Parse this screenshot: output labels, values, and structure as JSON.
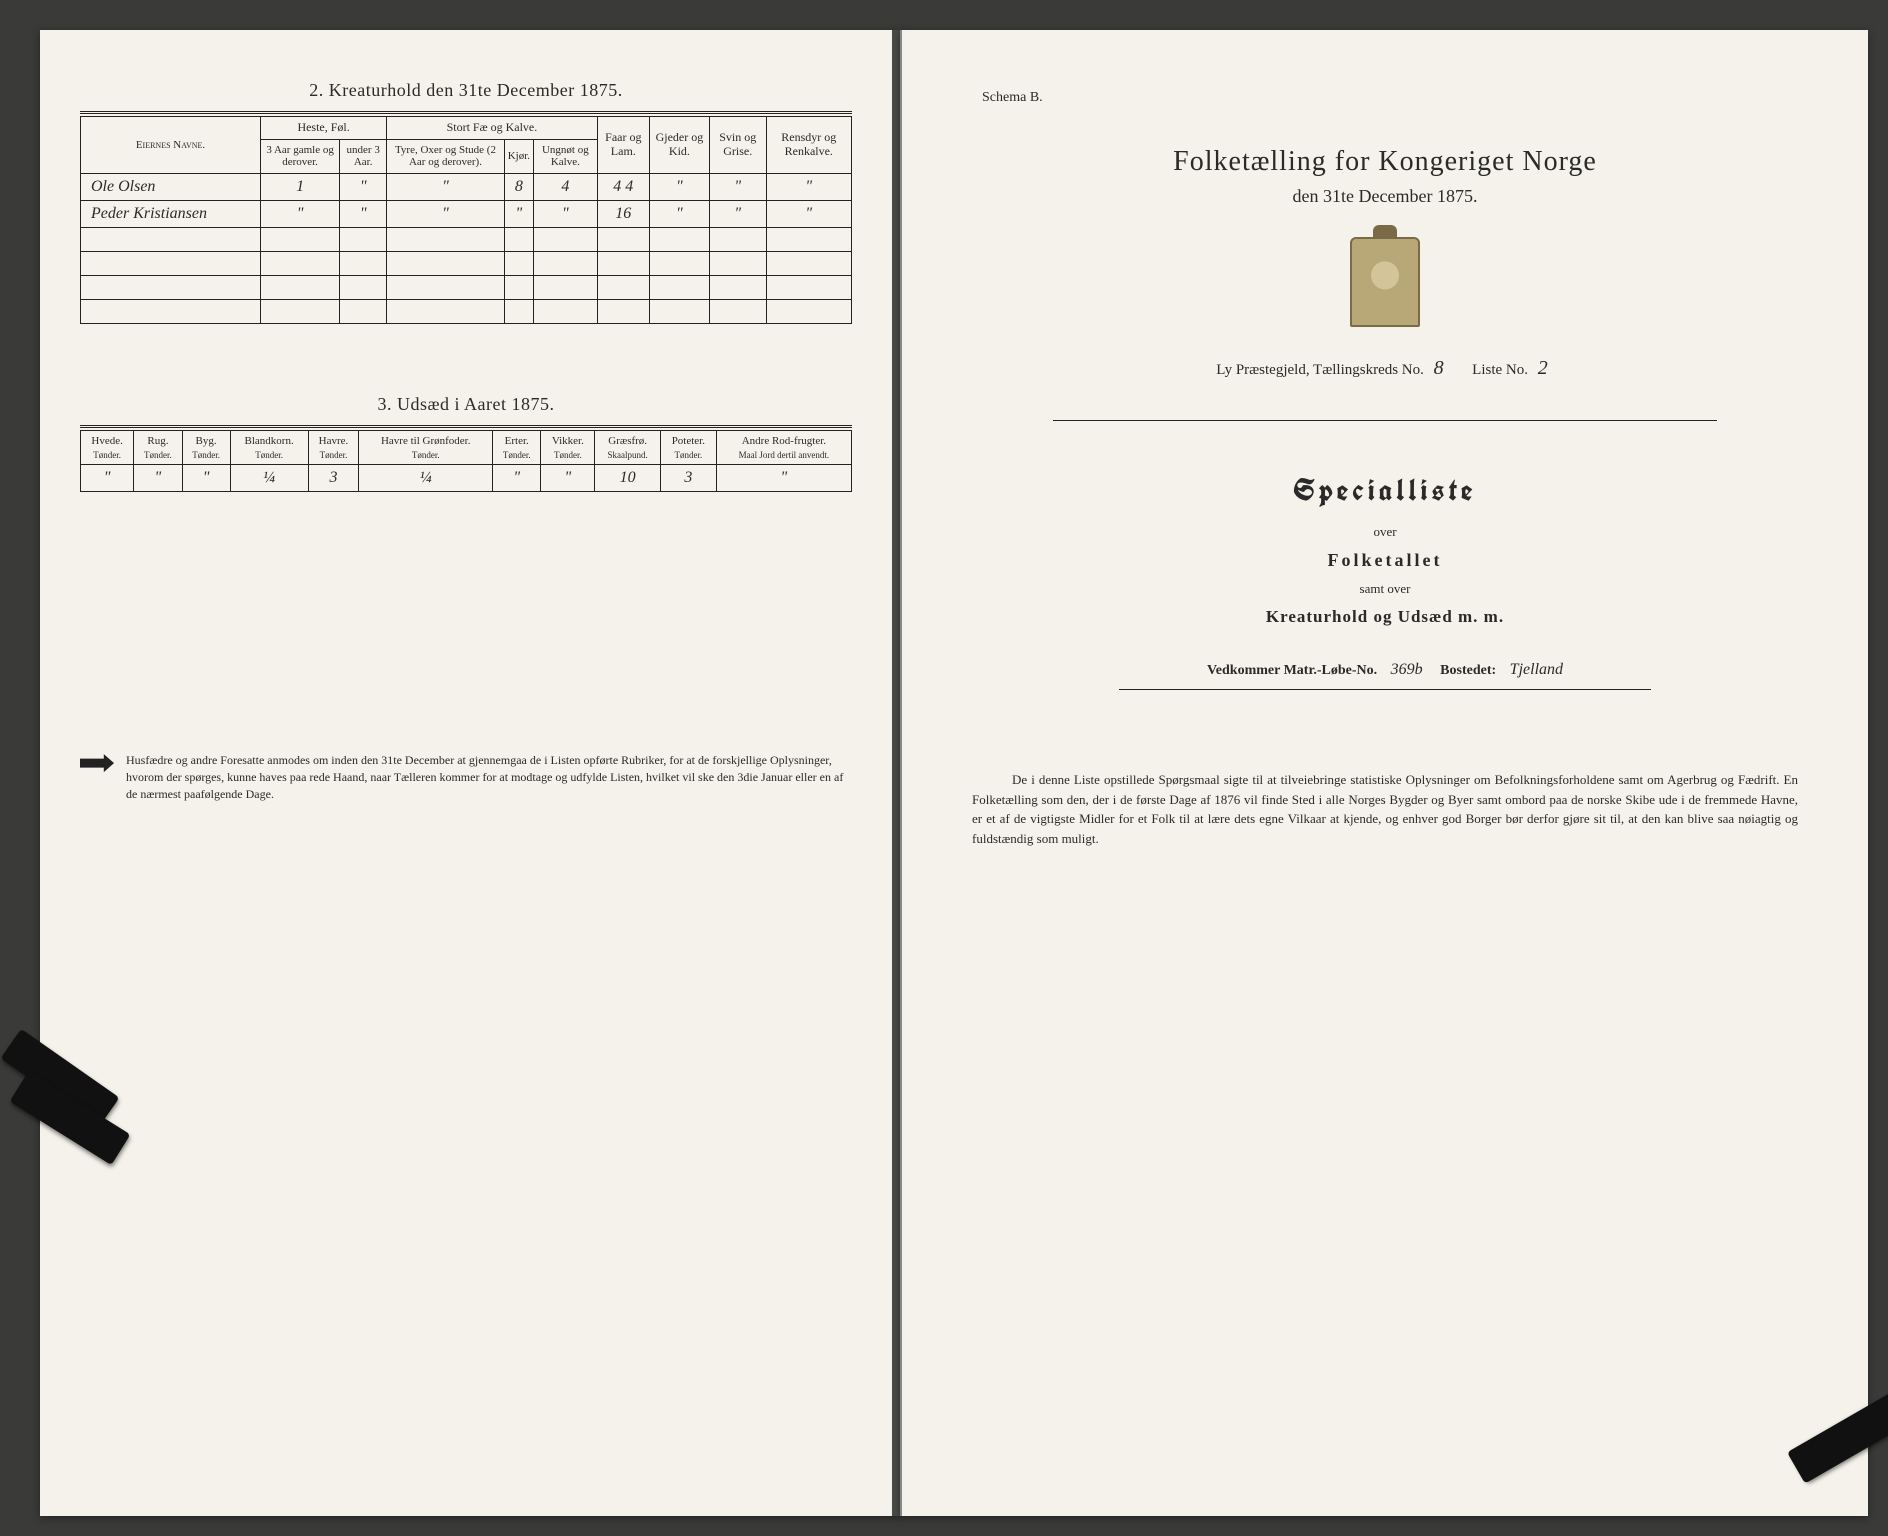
{
  "left": {
    "section2_title": "2.  Kreaturhold den 31te December 1875.",
    "section3_title": "3.  Udsæd i Aaret 1875.",
    "table2": {
      "col_names_header": "Eiernes Navne.",
      "groups": [
        "Heste, Føl.",
        "Stort Fæ og Kalve.",
        "Faar og Lam.",
        "Gjeder og Kid.",
        "Svin og Grise.",
        "Rensdyr og Renkalve."
      ],
      "sub": [
        "3 Aar gamle og derover.",
        "under 3 Aar.",
        "Tyre, Oxer og Stude (2 Aar og derover).",
        "Kjør.",
        "Ungnøt og Kalve."
      ],
      "rows": [
        {
          "name": "Ole Olsen",
          "cells": [
            "1",
            "\"",
            "\"",
            "8",
            "4",
            "4 4",
            "\"",
            "\"",
            "\""
          ]
        },
        {
          "name": "Peder Kristiansen",
          "cells": [
            "\"",
            "\"",
            "\"",
            "\"",
            "\"",
            "16",
            "\"",
            "\"",
            "\""
          ]
        }
      ]
    },
    "table3": {
      "headers": [
        "Hvede.",
        "Rug.",
        "Byg.",
        "Blandkorn.",
        "Havre.",
        "Havre til Grønfoder.",
        "Erter.",
        "Vikker.",
        "Græsfrø.",
        "Poteter.",
        "Andre Rod-frugter."
      ],
      "subs": [
        "Tønder.",
        "Tønder.",
        "Tønder.",
        "Tønder.",
        "Tønder.",
        "Tønder.",
        "Tønder.",
        "Tønder.",
        "Skaalpund.",
        "Tønder.",
        "Maal Jord dertil anvendt."
      ],
      "row": [
        "\"",
        "\"",
        "\"",
        "¼",
        "3",
        "¼",
        "\"",
        "\"",
        "10",
        "3",
        "\""
      ]
    },
    "footnote": "Husfædre og andre Foresatte anmodes om inden den 31te December at gjennemgaa de i Listen opførte Rubriker, for at de forskjellige Oplysninger, hvorom der spørges, kunne haves paa rede Haand, naar Tælleren kommer for at modtage og udfylde Listen, hvilket vil ske den 3die Januar eller en af de nærmest paafølgende Dage."
  },
  "right": {
    "schema": "Schema B.",
    "title1": "Folketælling for Kongeriget Norge",
    "title2": "den 31te December 1875.",
    "line_prefix": "Ly Præstegjeld, Tællingskreds No.",
    "kreds_no": "8",
    "liste_label": "Liste No.",
    "liste_no": "2",
    "special": "Specialliste",
    "over": "over",
    "folketallet": "Folketallet",
    "samt": "samt over",
    "kreatur": "Kreaturhold og Udsæd m. m.",
    "vedk_label": "Vedkommer Matr.-Løbe-No.",
    "matr_no": "369b",
    "bostedet_label": "Bostedet:",
    "bostedet": "Tjelland",
    "para": "De i denne Liste opstillede Spørgsmaal sigte til at tilveiebringe statistiske Oplysninger om Befolkningsforholdene samt om Agerbrug og Fædrift.   En Folketælling som den, der i de første Dage af 1876 vil finde Sted i alle Norges Bygder og Byer samt ombord paa de norske Skibe ude i de fremmede Havne, er et af de vigtigste Midler for et Folk til at lære dets egne Vilkaar at kjende, og enhver god Borger bør derfor gjøre sit til, at den kan blive saa nøiagtig og fuldstændig som muligt."
  }
}
